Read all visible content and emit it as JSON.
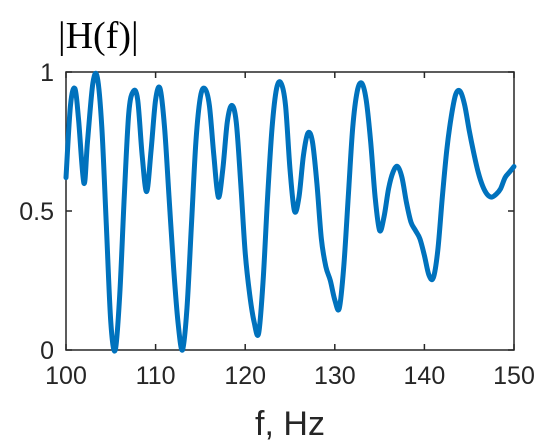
{
  "chart_data": {
    "type": "line",
    "title": "|H(f)|",
    "xlabel": "f, Hz",
    "ylabel": "",
    "xlim": [
      100,
      150
    ],
    "ylim": [
      0,
      1
    ],
    "xticks": [
      100,
      110,
      120,
      130,
      140,
      150
    ],
    "xtick_labels": [
      "100",
      "110",
      "120",
      "130",
      "140",
      "150"
    ],
    "yticks": [
      0,
      0.5,
      1
    ],
    "ytick_labels": [
      "0",
      "0.5",
      "1"
    ],
    "grid": false,
    "legend": "none",
    "colors": {
      "line": "#0072BD",
      "axes": "#262626"
    },
    "series": [
      {
        "x": [
          100.0,
          100.5,
          101.0,
          101.4,
          102.0,
          102.4,
          103.0,
          103.5,
          104.0,
          104.5,
          105.0,
          105.5,
          106.0,
          106.5,
          107.0,
          107.5,
          108.0,
          108.5,
          109.0,
          109.5,
          110.0,
          110.5,
          111.0,
          111.5,
          112.0,
          112.5,
          113.0,
          113.5,
          114.0,
          114.5,
          115.0,
          115.5,
          116.0,
          116.5,
          117.0,
          117.5,
          118.0,
          118.5,
          119.0,
          119.5,
          120.0,
          120.5,
          121.0,
          121.5,
          122.0,
          122.5,
          123.0,
          123.5,
          124.0,
          124.5,
          125.0,
          125.5,
          126.0,
          126.5,
          127.0,
          127.5,
          128.0,
          128.5,
          129.0,
          129.5,
          130.0,
          130.5,
          131.0,
          131.5,
          132.0,
          132.5,
          133.0,
          133.5,
          134.0,
          134.5,
          135.0,
          135.5,
          136.0,
          136.5,
          137.0,
          137.5,
          138.0,
          138.5,
          139.0,
          139.5,
          140.0,
          140.5,
          141.0,
          141.5,
          142.0,
          142.5,
          143.0,
          143.5,
          144.0,
          144.5,
          145.0,
          145.5,
          146.0,
          146.5,
          147.0,
          147.5,
          148.0,
          148.5,
          149.0,
          149.5,
          150.0
        ],
        "y": [
          0.62,
          0.88,
          0.94,
          0.83,
          0.6,
          0.75,
          0.96,
          0.98,
          0.8,
          0.45,
          0.1,
          0.0,
          0.2,
          0.55,
          0.85,
          0.93,
          0.9,
          0.7,
          0.57,
          0.72,
          0.9,
          0.94,
          0.8,
          0.55,
          0.3,
          0.1,
          0.0,
          0.15,
          0.45,
          0.75,
          0.91,
          0.94,
          0.88,
          0.7,
          0.55,
          0.65,
          0.82,
          0.88,
          0.82,
          0.6,
          0.35,
          0.2,
          0.1,
          0.06,
          0.25,
          0.55,
          0.8,
          0.94,
          0.96,
          0.88,
          0.65,
          0.5,
          0.55,
          0.7,
          0.78,
          0.75,
          0.6,
          0.4,
          0.3,
          0.25,
          0.18,
          0.15,
          0.3,
          0.55,
          0.8,
          0.93,
          0.96,
          0.9,
          0.75,
          0.55,
          0.43,
          0.48,
          0.58,
          0.64,
          0.66,
          0.62,
          0.53,
          0.46,
          0.43,
          0.4,
          0.34,
          0.27,
          0.26,
          0.36,
          0.55,
          0.72,
          0.84,
          0.92,
          0.93,
          0.88,
          0.79,
          0.71,
          0.64,
          0.59,
          0.56,
          0.55,
          0.56,
          0.58,
          0.62,
          0.64,
          0.66
        ]
      }
    ]
  }
}
